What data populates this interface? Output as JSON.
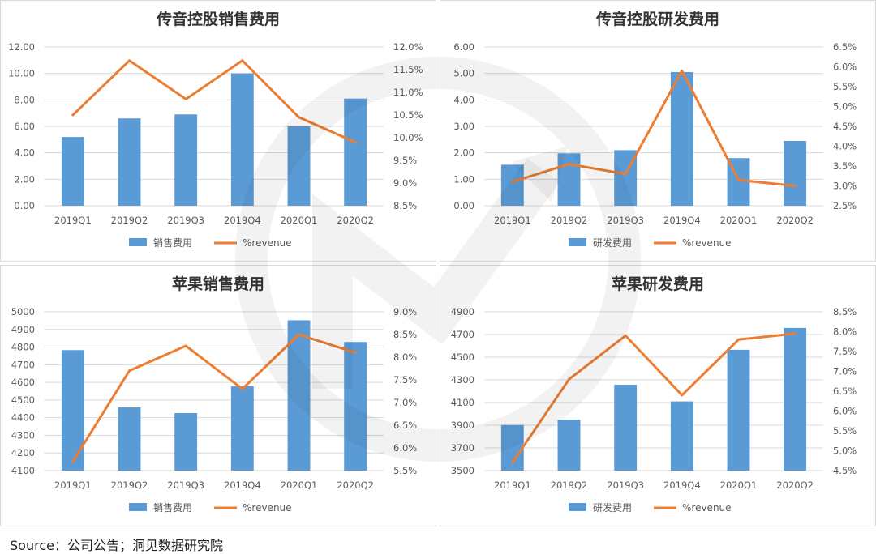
{
  "source": "Source：公司公告；洞见数据研究院",
  "colors": {
    "bar": "#5B9BD5",
    "line": "#ED7D31",
    "panel_border": "#d9d9d9",
    "grid": "#d9d9d9"
  },
  "chart_data": [
    {
      "type": "bar",
      "title": "传音控股销售费用",
      "categories": [
        "2019Q1",
        "2019Q2",
        "2019Q3",
        "2019Q4",
        "2020Q1",
        "2020Q2"
      ],
      "series": [
        {
          "name": "销售费用",
          "kind": "bar",
          "axis": "left",
          "values": [
            5.2,
            6.6,
            6.9,
            10.0,
            6.0,
            8.1
          ]
        },
        {
          "name": "%revenue",
          "kind": "line",
          "axis": "right",
          "values": [
            10.5,
            11.7,
            10.85,
            11.7,
            10.45,
            9.9
          ]
        }
      ],
      "ylim": [
        0,
        12
      ],
      "y_ticks": [
        "0.00",
        "2.00",
        "4.00",
        "6.00",
        "8.00",
        "10.00",
        "12.00"
      ],
      "y2lim": [
        8.5,
        12.0
      ],
      "y2_ticks": [
        "8.5%",
        "9.0%",
        "9.5%",
        "10.0%",
        "10.5%",
        "11.0%",
        "11.5%",
        "12.0%"
      ],
      "legend": "bottom"
    },
    {
      "type": "bar",
      "title": "传音控股研发费用",
      "categories": [
        "2019Q1",
        "2019Q2",
        "2019Q3",
        "2019Q4",
        "2020Q1",
        "2020Q2"
      ],
      "series": [
        {
          "name": "研发费用",
          "kind": "bar",
          "axis": "left",
          "values": [
            1.55,
            1.98,
            2.1,
            5.05,
            1.8,
            2.45
          ]
        },
        {
          "name": "%revenue",
          "kind": "line",
          "axis": "right",
          "values": [
            3.1,
            3.55,
            3.3,
            5.9,
            3.15,
            3.0
          ]
        }
      ],
      "ylim": [
        0,
        6
      ],
      "y_ticks": [
        "0.00",
        "1.00",
        "2.00",
        "3.00",
        "4.00",
        "5.00",
        "6.00"
      ],
      "y2lim": [
        2.5,
        6.5
      ],
      "y2_ticks": [
        "2.5%",
        "3.0%",
        "3.5%",
        "4.0%",
        "4.5%",
        "5.0%",
        "5.5%",
        "6.0%",
        "6.5%"
      ],
      "legend": "bottom"
    },
    {
      "type": "bar",
      "title": "苹果销售费用",
      "categories": [
        "2019Q1",
        "2019Q2",
        "2019Q3",
        "2019Q4",
        "2020Q1",
        "2020Q2"
      ],
      "series": [
        {
          "name": "销售费用",
          "kind": "bar",
          "axis": "left",
          "values": [
            4783,
            4458,
            4426,
            4578,
            4952,
            4829
          ]
        },
        {
          "name": "%revenue",
          "kind": "line",
          "axis": "right",
          "values": [
            5.7,
            7.7,
            8.25,
            7.3,
            8.5,
            8.1
          ]
        }
      ],
      "ylim": [
        4100,
        5000
      ],
      "y_ticks": [
        "4100",
        "4200",
        "4300",
        "4400",
        "4500",
        "4600",
        "4700",
        "4800",
        "4900",
        "5000"
      ],
      "y2lim": [
        5.5,
        9.0
      ],
      "y2_ticks": [
        "5.5%",
        "6.0%",
        "6.5%",
        "7.0%",
        "7.5%",
        "8.0%",
        "8.5%",
        "9.0%"
      ],
      "legend": "bottom"
    },
    {
      "type": "bar",
      "title": "苹果研发费用",
      "categories": [
        "2019Q1",
        "2019Q2",
        "2019Q3",
        "2019Q4",
        "2020Q1",
        "2020Q2"
      ],
      "series": [
        {
          "name": "研发费用",
          "kind": "bar",
          "axis": "left",
          "values": [
            3902,
            3948,
            4257,
            4110,
            4565,
            4758
          ]
        },
        {
          "name": "%revenue",
          "kind": "line",
          "axis": "right",
          "values": [
            4.7,
            6.8,
            7.9,
            6.4,
            7.8,
            7.95
          ]
        }
      ],
      "ylim": [
        3500,
        4900
      ],
      "y_ticks": [
        "3500",
        "3700",
        "3900",
        "4100",
        "4300",
        "4500",
        "4700",
        "4900"
      ],
      "y2lim": [
        4.5,
        8.5
      ],
      "y2_ticks": [
        "4.5%",
        "5.0%",
        "5.5%",
        "6.0%",
        "6.5%",
        "7.0%",
        "7.5%",
        "8.0%",
        "8.5%"
      ],
      "legend": "bottom"
    }
  ]
}
